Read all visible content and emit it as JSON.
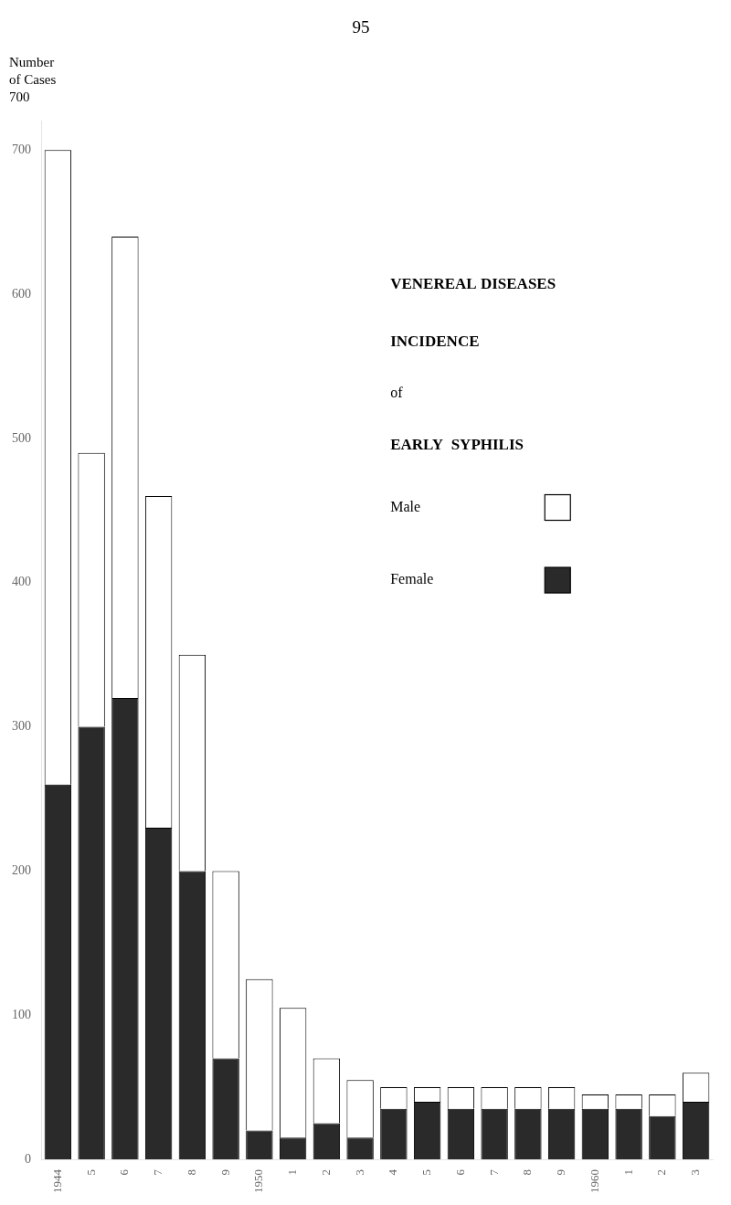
{
  "chart_data": {
    "type": "bar",
    "title": "95",
    "stacked": true,
    "categories": [
      "1944",
      "5",
      "6",
      "7",
      "8",
      "9",
      "1950",
      "1",
      "2",
      "3",
      "4",
      "5",
      "6",
      "7",
      "8",
      "9",
      "1960",
      "1",
      "2",
      "3"
    ],
    "series": [
      {
        "name": "Female",
        "color": "#2a2a2a",
        "values": [
          260,
          300,
          320,
          230,
          200,
          70,
          20,
          15,
          25,
          15,
          35,
          40,
          35,
          35,
          35,
          35,
          35,
          35,
          30,
          40
        ]
      },
      {
        "name": "Male",
        "color": "#ffffff",
        "values": [
          440,
          190,
          320,
          230,
          150,
          130,
          105,
          90,
          45,
          40,
          15,
          10,
          15,
          15,
          15,
          15,
          10,
          10,
          15,
          20
        ]
      }
    ],
    "ylim": [
      0,
      720
    ],
    "yticks": [
      0,
      100,
      200,
      300,
      400,
      500,
      600,
      700
    ],
    "ylabel": [
      "Number",
      "of Cases",
      "700"
    ],
    "annotations": [
      "VENEREAL DISEASES",
      "INCIDENCE",
      "of",
      "EARLY  SYPHILIS"
    ],
    "legend": "upper right",
    "grid": false
  }
}
